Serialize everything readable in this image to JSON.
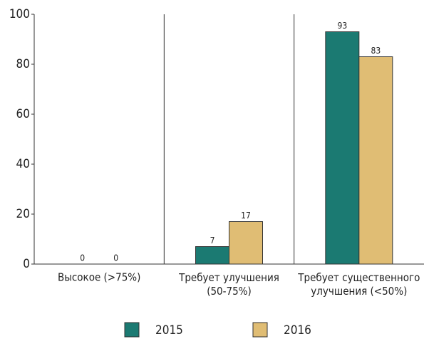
{
  "chart_data": {
    "type": "bar",
    "categories": [
      "Высокое (>75%)",
      "Требует улучшения\n(50-75%)",
      "Требует существенного\nулучшения (<50%)"
    ],
    "series": [
      {
        "name": "2015",
        "color": "#1b7a72",
        "values": [
          0,
          7,
          93
        ]
      },
      {
        "name": "2016",
        "color": "#e0bd74",
        "values": [
          0,
          17,
          83
        ]
      }
    ],
    "ylim": [
      0,
      100
    ],
    "yticks": [
      0,
      20,
      40,
      60,
      80,
      100
    ],
    "grid": false,
    "legend": "bottom"
  }
}
